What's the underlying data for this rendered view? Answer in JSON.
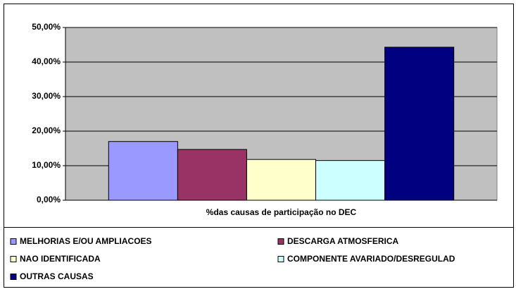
{
  "chart_data": {
    "type": "bar",
    "categories": [
      "%das causas de participação no DEC"
    ],
    "series": [
      {
        "name": "MELHORIAS E/OU AMPLIACOES",
        "color": "#9999ff",
        "values": [
          17.0
        ]
      },
      {
        "name": "DESCARGA ATMOSFERICA",
        "color": "#993366",
        "values": [
          14.7
        ]
      },
      {
        "name": "NAO IDENTIFICADA",
        "color": "#ffffcc",
        "values": [
          11.8
        ]
      },
      {
        "name": "COMPONENTE AVARIADO/DESREGULAD",
        "color": "#ccffff",
        "values": [
          11.5
        ]
      },
      {
        "name": "OUTRAS CAUSAS",
        "color": "#000080",
        "values": [
          44.3
        ]
      }
    ],
    "ylim": [
      0,
      50
    ],
    "yticks": [
      {
        "value": 0,
        "label": "0,00%"
      },
      {
        "value": 10,
        "label": "10,00%"
      },
      {
        "value": 20,
        "label": "20,00%"
      },
      {
        "value": 30,
        "label": "30,00%"
      },
      {
        "value": 40,
        "label": "40,00%"
      },
      {
        "value": 50,
        "label": "50,00%"
      }
    ],
    "grid": true,
    "plot_background": "#c0c0c0",
    "legend": "bottom"
  }
}
